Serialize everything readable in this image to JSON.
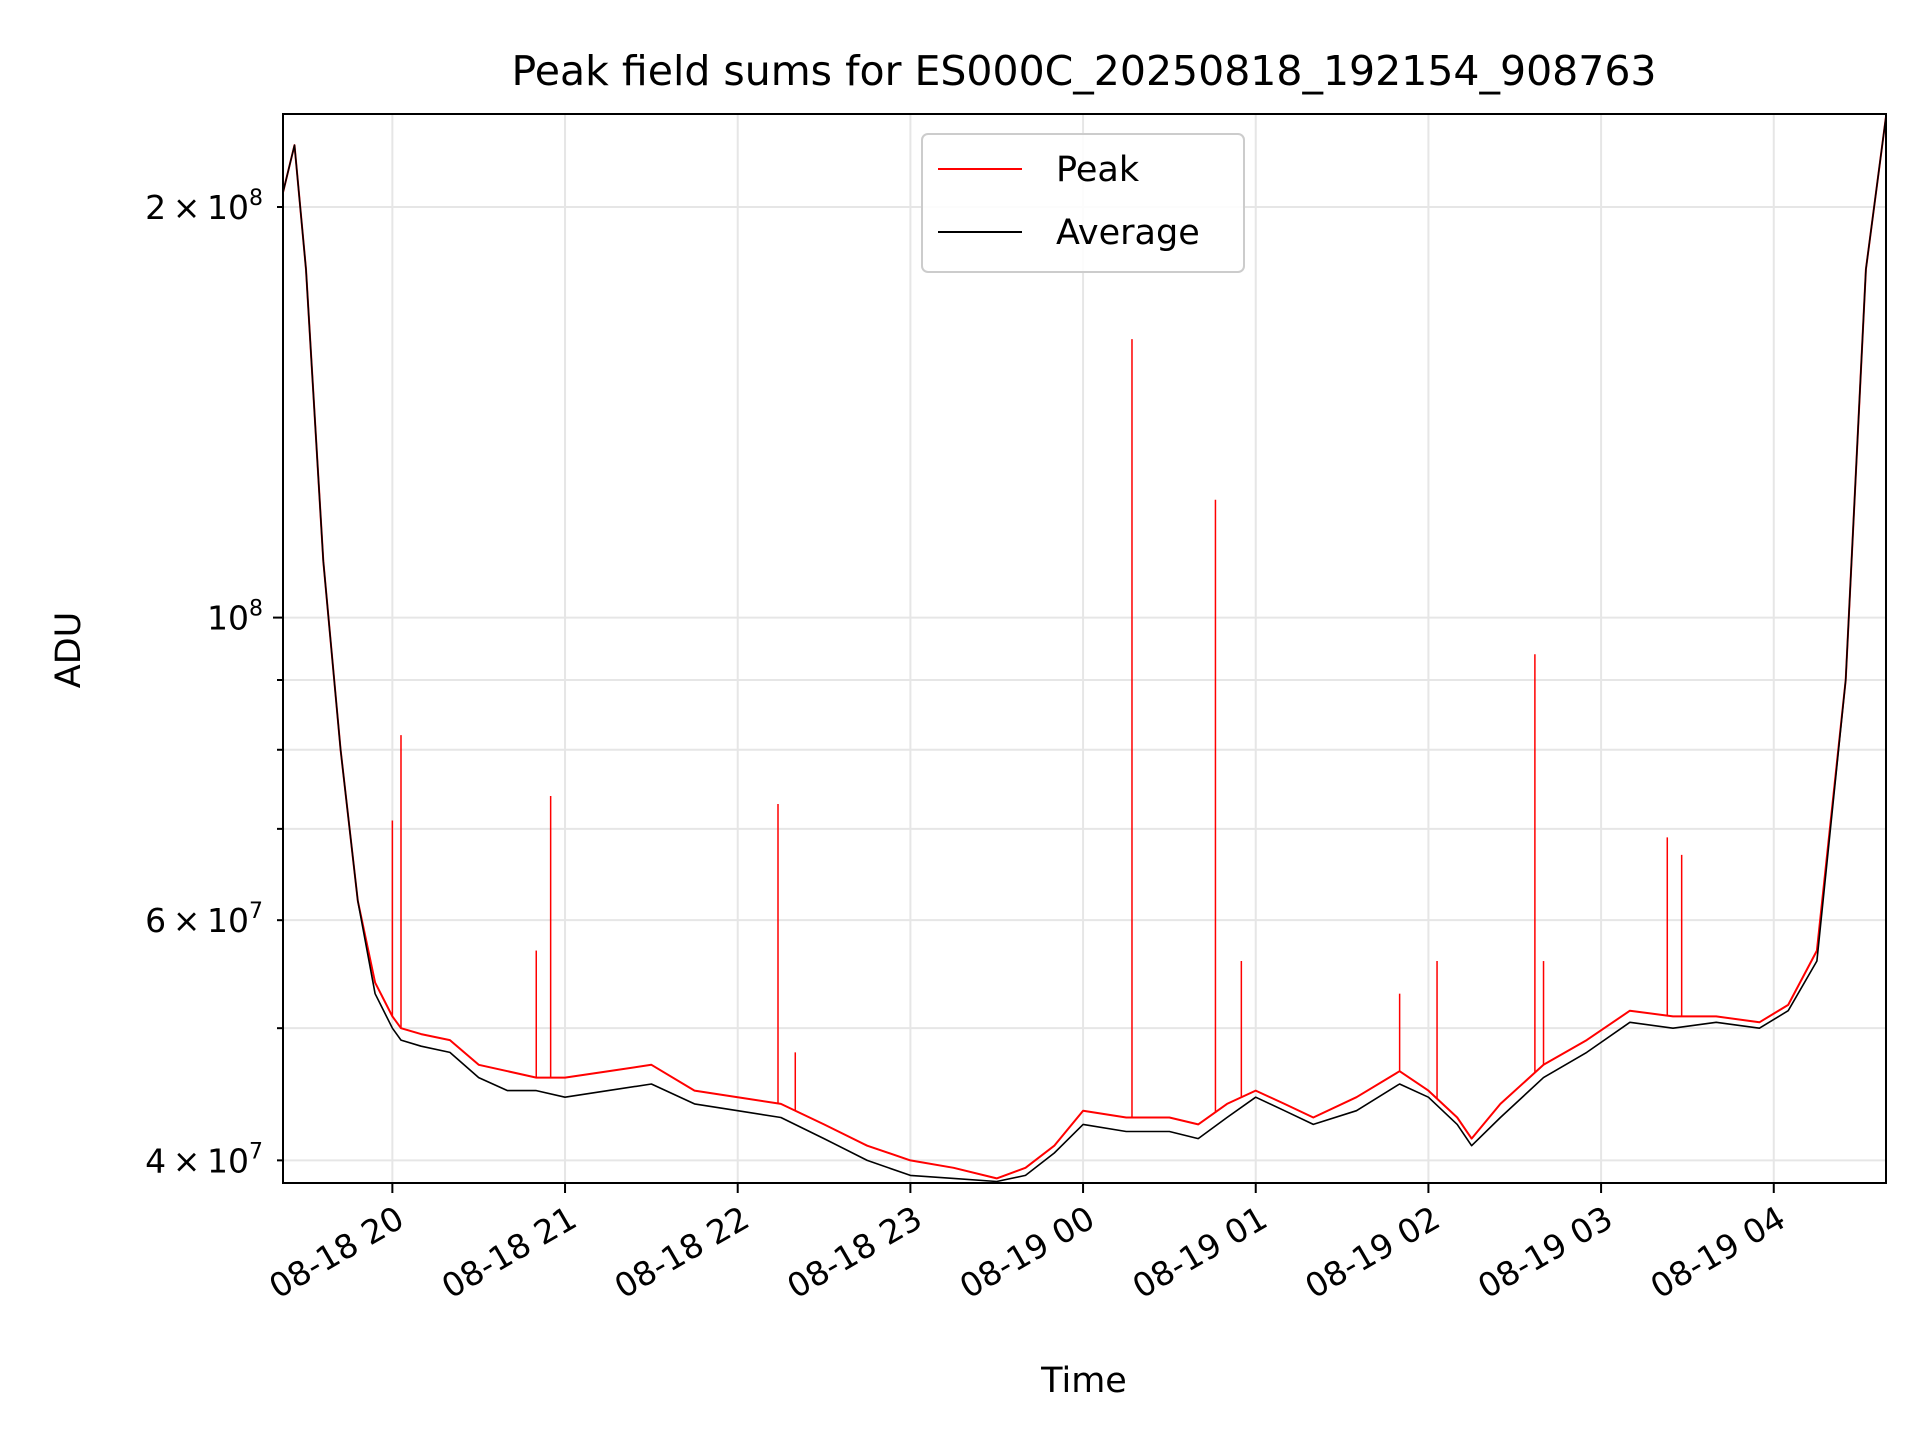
{
  "chart_data": {
    "type": "line",
    "title": "Peak field sums for ES000C_20250818_192154_908763",
    "xlabel": "Time",
    "ylabel": "ADU",
    "yscale": "log",
    "xlim": [
      "2025-08-18 19:22",
      "2025-08-19 04:39"
    ],
    "ylim": [
      38500000,
      234000000
    ],
    "grid": true,
    "legend_position": "top-center",
    "x_tick_values": [
      "2025-08-18 20:00",
      "2025-08-18 21:00",
      "2025-08-18 22:00",
      "2025-08-18 23:00",
      "2025-08-19 00:00",
      "2025-08-19 01:00",
      "2025-08-19 02:00",
      "2025-08-19 03:00",
      "2025-08-19 04:00"
    ],
    "x_tick_labels": [
      "08-18 20",
      "08-18 21",
      "08-18 22",
      "08-18 23",
      "08-19 00",
      "08-19 01",
      "08-19 02",
      "08-19 03",
      "08-19 04"
    ],
    "y_major_ticks": [
      {
        "value": 100000000,
        "base": "10",
        "exp": "8",
        "label": "10^8"
      }
    ],
    "y_minor_ticks": [
      {
        "value": 40000000,
        "mant": "4",
        "base": "10",
        "exp": "7",
        "label": "4×10^7"
      },
      {
        "value": 60000000,
        "mant": "6",
        "base": "10",
        "exp": "7",
        "label": "6×10^7"
      },
      {
        "value": 200000000,
        "mant": "2",
        "base": "10",
        "exp": "8",
        "label": "2×10^8"
      }
    ],
    "y_minor_unlabeled": [
      50000000,
      70000000,
      80000000,
      90000000
    ],
    "series": [
      {
        "name": "Peak",
        "color": "#ff0000",
        "x": [
          "2025-08-18 19:22",
          "2025-08-18 19:26",
          "2025-08-18 19:30",
          "2025-08-18 19:36",
          "2025-08-18 19:42",
          "2025-08-18 19:48",
          "2025-08-18 19:54",
          "2025-08-18 20:00",
          "2025-08-18 20:03",
          "2025-08-18 20:10",
          "2025-08-18 20:20",
          "2025-08-18 20:30",
          "2025-08-18 20:40",
          "2025-08-18 20:50",
          "2025-08-18 21:00",
          "2025-08-18 21:15",
          "2025-08-18 21:30",
          "2025-08-18 21:45",
          "2025-08-18 22:00",
          "2025-08-18 22:15",
          "2025-08-18 22:30",
          "2025-08-18 22:45",
          "2025-08-18 23:00",
          "2025-08-18 23:15",
          "2025-08-18 23:30",
          "2025-08-18 23:40",
          "2025-08-18 23:50",
          "2025-08-19 00:00",
          "2025-08-19 00:15",
          "2025-08-19 00:30",
          "2025-08-19 00:40",
          "2025-08-19 00:50",
          "2025-08-19 01:00",
          "2025-08-19 01:10",
          "2025-08-19 01:20",
          "2025-08-19 01:35",
          "2025-08-19 01:50",
          "2025-08-19 02:00",
          "2025-08-19 02:10",
          "2025-08-19 02:15",
          "2025-08-19 02:25",
          "2025-08-19 02:40",
          "2025-08-19 02:55",
          "2025-08-19 03:10",
          "2025-08-19 03:25",
          "2025-08-19 03:40",
          "2025-08-19 03:55",
          "2025-08-19 04:05",
          "2025-08-19 04:15",
          "2025-08-19 04:25",
          "2025-08-19 04:32",
          "2025-08-19 04:39"
        ],
        "values": [
          205000000,
          222000000,
          180000000,
          110000000,
          80000000,
          62000000,
          54000000,
          51000000,
          50000000,
          49500000,
          49000000,
          47000000,
          46500000,
          46000000,
          46000000,
          46500000,
          47000000,
          45000000,
          44500000,
          44000000,
          42500000,
          41000000,
          40000000,
          39500000,
          38800000,
          39500000,
          41000000,
          43500000,
          43000000,
          43000000,
          42500000,
          44000000,
          45000000,
          44000000,
          43000000,
          44500000,
          46500000,
          45000000,
          43000000,
          41500000,
          44000000,
          47000000,
          49000000,
          51500000,
          51000000,
          51000000,
          50500000,
          52000000,
          57000000,
          90000000,
          180000000,
          233000000
        ],
        "spikes": [
          {
            "x": "2025-08-18 20:00",
            "y": 71000000
          },
          {
            "x": "2025-08-18 20:03",
            "y": 82000000
          },
          {
            "x": "2025-08-18 20:50",
            "y": 57000000
          },
          {
            "x": "2025-08-18 20:55",
            "y": 74000000
          },
          {
            "x": "2025-08-18 22:14",
            "y": 73000000
          },
          {
            "x": "2025-08-18 22:20",
            "y": 48000000
          },
          {
            "x": "2025-08-19 00:17",
            "y": 160000000
          },
          {
            "x": "2025-08-19 00:46",
            "y": 122000000
          },
          {
            "x": "2025-08-19 00:55",
            "y": 56000000
          },
          {
            "x": "2025-08-19 01:50",
            "y": 53000000
          },
          {
            "x": "2025-08-19 02:03",
            "y": 56000000
          },
          {
            "x": "2025-08-19 02:37",
            "y": 94000000
          },
          {
            "x": "2025-08-19 02:40",
            "y": 56000000
          },
          {
            "x": "2025-08-19 03:23",
            "y": 69000000
          },
          {
            "x": "2025-08-19 03:28",
            "y": 67000000
          }
        ]
      },
      {
        "name": "Average",
        "color": "#000000",
        "x": [
          "2025-08-18 19:22",
          "2025-08-18 19:26",
          "2025-08-18 19:30",
          "2025-08-18 19:36",
          "2025-08-18 19:42",
          "2025-08-18 19:48",
          "2025-08-18 19:54",
          "2025-08-18 20:00",
          "2025-08-18 20:03",
          "2025-08-18 20:10",
          "2025-08-18 20:20",
          "2025-08-18 20:30",
          "2025-08-18 20:40",
          "2025-08-18 20:50",
          "2025-08-18 21:00",
          "2025-08-18 21:15",
          "2025-08-18 21:30",
          "2025-08-18 21:45",
          "2025-08-18 22:00",
          "2025-08-18 22:15",
          "2025-08-18 22:30",
          "2025-08-18 22:45",
          "2025-08-18 23:00",
          "2025-08-18 23:15",
          "2025-08-18 23:30",
          "2025-08-18 23:40",
          "2025-08-18 23:50",
          "2025-08-19 00:00",
          "2025-08-19 00:15",
          "2025-08-19 00:30",
          "2025-08-19 00:40",
          "2025-08-19 00:50",
          "2025-08-19 01:00",
          "2025-08-19 01:10",
          "2025-08-19 01:20",
          "2025-08-19 01:35",
          "2025-08-19 01:50",
          "2025-08-19 02:00",
          "2025-08-19 02:10",
          "2025-08-19 02:15",
          "2025-08-19 02:25",
          "2025-08-19 02:40",
          "2025-08-19 02:55",
          "2025-08-19 03:10",
          "2025-08-19 03:25",
          "2025-08-19 03:40",
          "2025-08-19 03:55",
          "2025-08-19 04:05",
          "2025-08-19 04:15",
          "2025-08-19 04:25",
          "2025-08-19 04:32",
          "2025-08-19 04:39"
        ],
        "values": [
          205000000,
          222000000,
          180000000,
          110000000,
          80000000,
          62000000,
          53000000,
          50000000,
          49000000,
          48500000,
          48000000,
          46000000,
          45000000,
          45000000,
          44500000,
          45000000,
          45500000,
          44000000,
          43500000,
          43000000,
          41500000,
          40000000,
          39000000,
          38800000,
          38600000,
          39000000,
          40500000,
          42500000,
          42000000,
          42000000,
          41500000,
          43000000,
          44500000,
          43500000,
          42500000,
          43500000,
          45500000,
          44500000,
          42500000,
          41000000,
          43000000,
          46000000,
          48000000,
          50500000,
          50000000,
          50500000,
          50000000,
          51500000,
          56000000,
          90000000,
          180000000,
          233000000
        ]
      }
    ]
  }
}
